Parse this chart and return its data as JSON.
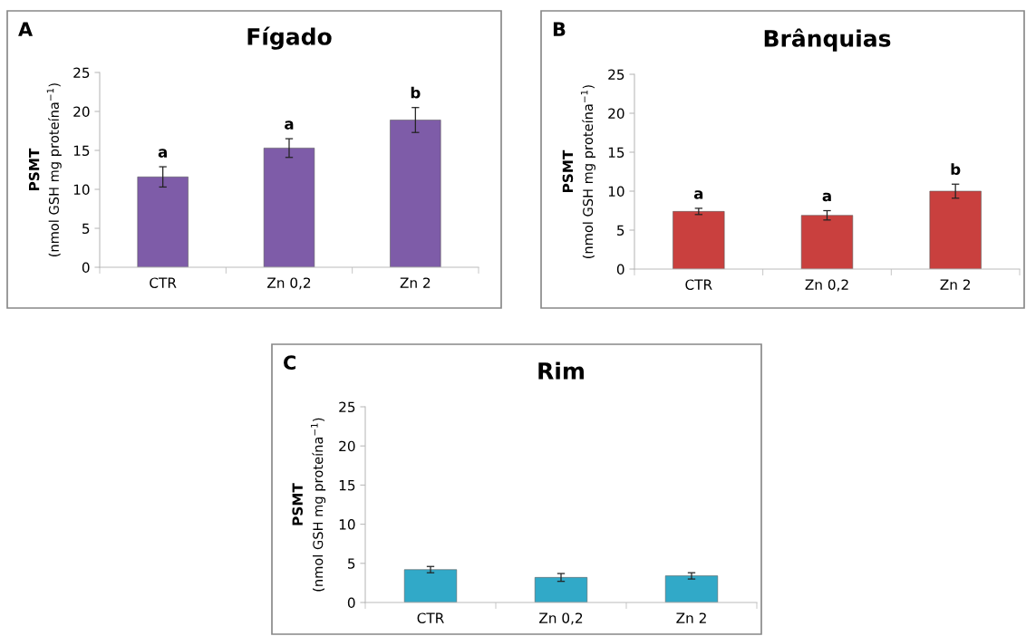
{
  "chart_data": [
    {
      "type": "bar",
      "title": "Fígado",
      "ylabel": "PSMT\n(nmol GSH mg proteína$^{−1}$)",
      "categories": [
        "CTR",
        "Zn 0,2",
        "Zn 2"
      ],
      "values": [
        11.6,
        15.3,
        18.9
      ],
      "errors": [
        1.3,
        1.2,
        1.6
      ],
      "color": "#7e5ca8",
      "ylim": [
        0,
        25
      ],
      "yticks": [
        0,
        5,
        10,
        15,
        20,
        25
      ],
      "grid": false,
      "legend": false,
      "annotations": [
        "A",
        {
          "text": "a",
          "x": "CTR",
          "y": 12.9
        },
        {
          "text": "a",
          "x": "Zn 0,2",
          "y": 16.5
        },
        {
          "text": "b",
          "x": "Zn 2",
          "y": 20.5
        }
      ]
    },
    {
      "type": "bar",
      "title": "Brânquias",
      "ylabel": "PSMT\n(nmol GSH mg proteína$^{−1}$)",
      "categories": [
        "CTR",
        "Zn 0,2",
        "Zn 2"
      ],
      "values": [
        7.4,
        6.9,
        10.0
      ],
      "errors": [
        0.4,
        0.6,
        0.9
      ],
      "color": "#c9403e",
      "ylim": [
        0,
        25
      ],
      "yticks": [
        0,
        5,
        10,
        15,
        20,
        25
      ],
      "grid": false,
      "legend": false,
      "annotations": [
        "B",
        {
          "text": "a",
          "x": "CTR",
          "y": 7.8
        },
        {
          "text": "a",
          "x": "Zn 0,2",
          "y": 7.5
        },
        {
          "text": "b",
          "x": "Zn 2",
          "y": 10.9
        }
      ]
    },
    {
      "type": "bar",
      "title": "Rim",
      "ylabel": "PSMT\n(nmol GSH mg proteína$^{−1}$)",
      "categories": [
        "CTR",
        "Zn 0,2",
        "Zn 2"
      ],
      "values": [
        4.2,
        3.2,
        3.4
      ],
      "errors": [
        0.4,
        0.5,
        0.4
      ],
      "color": "#31a9c8",
      "ylim": [
        0,
        25
      ],
      "yticks": [
        0,
        5,
        10,
        15,
        20,
        25
      ],
      "grid": false,
      "legend": false,
      "annotations": [
        "C"
      ]
    }
  ]
}
